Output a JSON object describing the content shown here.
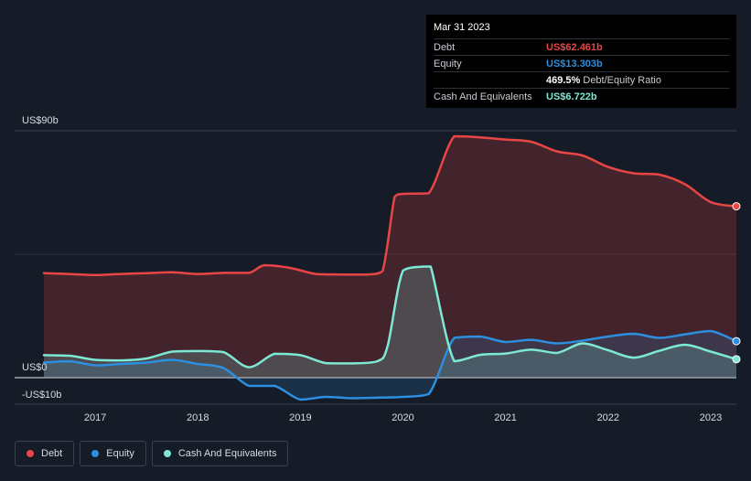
{
  "colors": {
    "debt": "#e84545",
    "equity": "#2c8fe0",
    "cash": "#7de8d4",
    "background": "#151b27"
  },
  "tooltip": {
    "date": "Mar 31 2023",
    "debt_label": "Debt",
    "debt_value": "US$62.461b",
    "equity_label": "Equity",
    "equity_value": "US$13.303b",
    "ratio_value": "469.5%",
    "ratio_label": "Debt/Equity Ratio",
    "cash_label": "Cash And Equivalents",
    "cash_value": "US$6.722b"
  },
  "legend": {
    "debt": "Debt",
    "equity": "Equity",
    "cash": "Cash And Equivalents"
  },
  "chart_data": {
    "type": "area",
    "title": "",
    "xlabel": "",
    "ylabel": "",
    "x_range": [
      2016.5,
      2023.25
    ],
    "ylim": [
      -10,
      90
    ],
    "y_tick_labels": [
      {
        "value": 90,
        "label": "US$90b"
      },
      {
        "value": 0,
        "label": "US$0"
      },
      {
        "value": -10,
        "label": "-US$10b"
      }
    ],
    "x_tick_labels": [
      "2017",
      "2018",
      "2019",
      "2020",
      "2021",
      "2022",
      "2023"
    ],
    "x_ticks": [
      2017,
      2018,
      2019,
      2020,
      2021,
      2022,
      2023
    ],
    "series": [
      {
        "name": "Debt",
        "key": "debt",
        "points": [
          [
            2016.5,
            38.1
          ],
          [
            2016.75,
            37.8
          ],
          [
            2017.0,
            37.4
          ],
          [
            2017.25,
            37.8
          ],
          [
            2017.5,
            38.1
          ],
          [
            2017.75,
            38.4
          ],
          [
            2018.0,
            37.8
          ],
          [
            2018.25,
            38.2
          ],
          [
            2018.5,
            38.2
          ],
          [
            2018.65,
            41.0
          ],
          [
            2018.9,
            40.0
          ],
          [
            2019.15,
            37.8
          ],
          [
            2019.4,
            37.6
          ],
          [
            2019.65,
            37.6
          ],
          [
            2019.8,
            38.8
          ],
          [
            2019.92,
            66.0
          ],
          [
            2020.0,
            67.0
          ],
          [
            2020.25,
            67.2
          ],
          [
            2020.5,
            88.0
          ],
          [
            2020.75,
            87.6
          ],
          [
            2021.0,
            86.8
          ],
          [
            2021.25,
            86.0
          ],
          [
            2021.5,
            82.5
          ],
          [
            2021.75,
            81.0
          ],
          [
            2022.0,
            76.8
          ],
          [
            2022.25,
            74.5
          ],
          [
            2022.5,
            74.0
          ],
          [
            2022.75,
            70.5
          ],
          [
            2023.0,
            64.0
          ],
          [
            2023.25,
            62.461
          ]
        ]
      },
      {
        "name": "Equity",
        "key": "equity",
        "points": [
          [
            2016.5,
            5.5
          ],
          [
            2016.75,
            6.0
          ],
          [
            2017.0,
            4.5
          ],
          [
            2017.25,
            5.0
          ],
          [
            2017.5,
            5.5
          ],
          [
            2017.75,
            6.5
          ],
          [
            2018.0,
            5.0
          ],
          [
            2018.25,
            3.5
          ],
          [
            2018.5,
            -3.0
          ],
          [
            2018.75,
            -3.0
          ],
          [
            2019.0,
            -8.0
          ],
          [
            2019.25,
            -7.0
          ],
          [
            2019.5,
            -7.5
          ],
          [
            2019.75,
            -7.3
          ],
          [
            2020.0,
            -7.0
          ],
          [
            2020.25,
            -6.0
          ],
          [
            2020.5,
            14.5
          ],
          [
            2020.75,
            15.0
          ],
          [
            2021.0,
            13.0
          ],
          [
            2021.25,
            13.8
          ],
          [
            2021.5,
            12.5
          ],
          [
            2021.75,
            13.5
          ],
          [
            2022.0,
            15.0
          ],
          [
            2022.25,
            16.0
          ],
          [
            2022.5,
            14.5
          ],
          [
            2022.75,
            15.8
          ],
          [
            2023.0,
            17.0
          ],
          [
            2023.25,
            13.303
          ]
        ]
      },
      {
        "name": "Cash And Equivalents",
        "key": "cash",
        "points": [
          [
            2016.5,
            8.2
          ],
          [
            2016.75,
            8.0
          ],
          [
            2017.0,
            6.5
          ],
          [
            2017.25,
            6.3
          ],
          [
            2017.5,
            7.0
          ],
          [
            2017.75,
            9.5
          ],
          [
            2018.0,
            9.7
          ],
          [
            2018.25,
            9.3
          ],
          [
            2018.5,
            3.8
          ],
          [
            2018.75,
            8.7
          ],
          [
            2019.0,
            8.2
          ],
          [
            2019.25,
            5.3
          ],
          [
            2019.5,
            5.2
          ],
          [
            2019.75,
            6.0
          ],
          [
            2019.85,
            11.5
          ],
          [
            2020.0,
            39.0
          ],
          [
            2020.2,
            40.5
          ],
          [
            2020.27,
            40.5
          ],
          [
            2020.5,
            6.0
          ],
          [
            2020.75,
            8.3
          ],
          [
            2021.0,
            8.8
          ],
          [
            2021.25,
            10.2
          ],
          [
            2021.5,
            9.0
          ],
          [
            2021.75,
            12.5
          ],
          [
            2022.0,
            10.0
          ],
          [
            2022.25,
            7.3
          ],
          [
            2022.5,
            9.8
          ],
          [
            2022.75,
            12.0
          ],
          [
            2023.0,
            9.5
          ],
          [
            2023.25,
            6.722
          ]
        ]
      }
    ]
  }
}
